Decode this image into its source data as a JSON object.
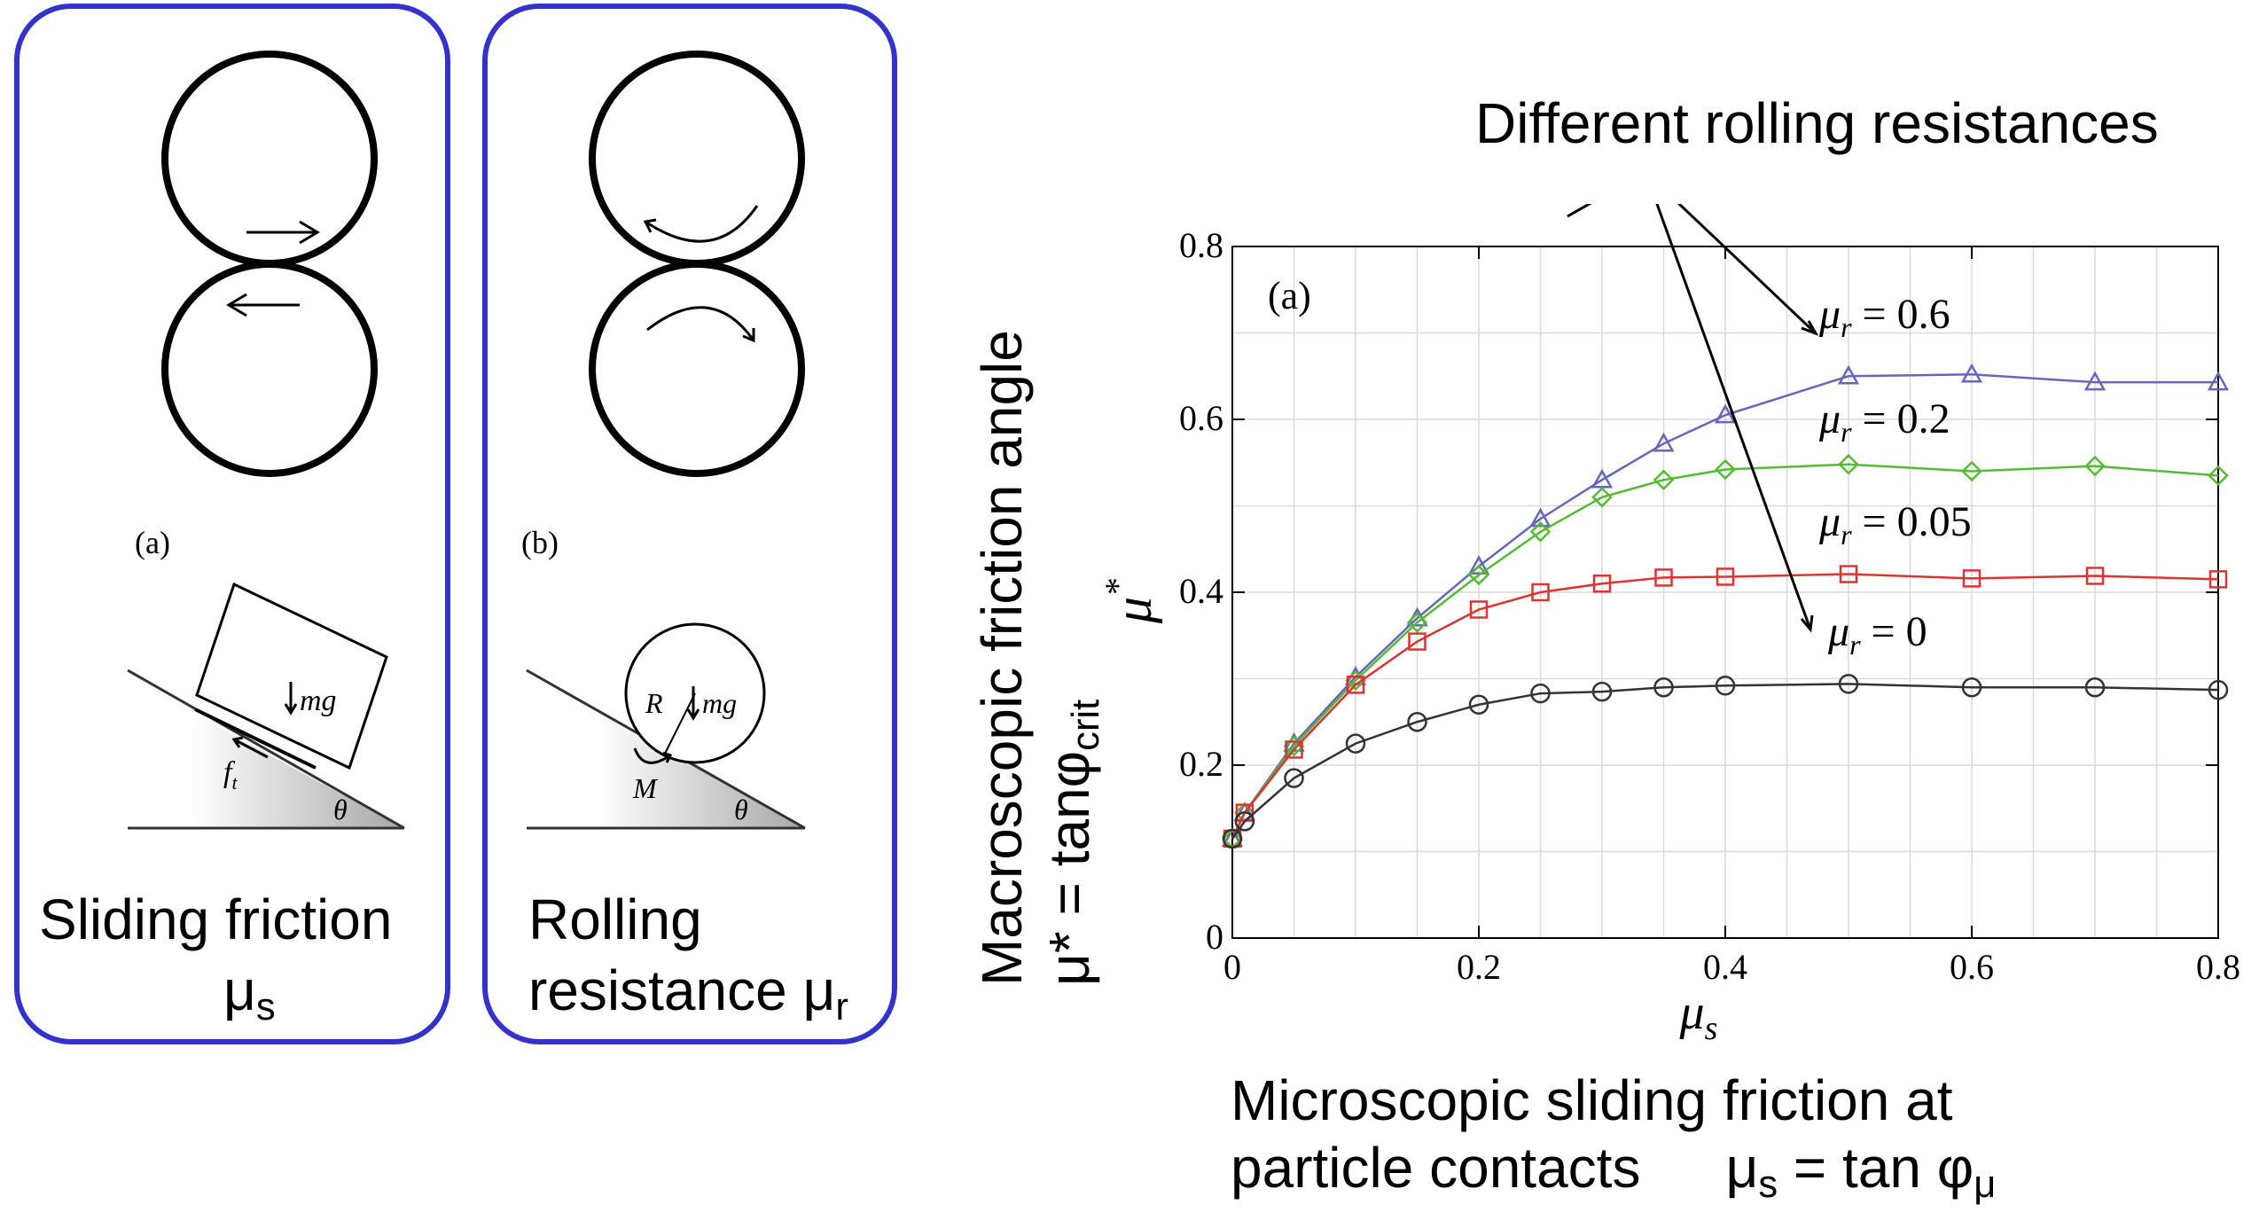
{
  "panel_a": {
    "sublabel": "(a)",
    "force_label": "mg",
    "friction_label": "f",
    "friction_sub": "t",
    "angle_label": "θ",
    "caption_line1": "Sliding friction",
    "caption_mu": "μ",
    "caption_sub": "s"
  },
  "panel_b": {
    "sublabel": "(b)",
    "radius_label": "R",
    "force_label": "mg",
    "moment_label": "M",
    "angle_label": "θ",
    "caption_line1": "Rolling",
    "caption_line2": "resistance μ",
    "caption_sub": "r"
  },
  "annotation": {
    "text": "Different rolling resistances"
  },
  "left_label": {
    "line1": "Macroscopic friction angle",
    "line2_prefix": "μ* = tanφ",
    "line2_sub": "crit"
  },
  "bottom_label": {
    "line1": "Microscopic sliding friction at",
    "line2_prefix": "particle contacts",
    "line2_mu": "μ",
    "line2_mu_sub": "s",
    "line2_eq": " = tan φ",
    "line2_phi_sub": "μ"
  },
  "chart_data": {
    "type": "line",
    "panel_label": "(a)",
    "xlabel_base": "μ",
    "xlabel_sub": "s",
    "ylabel_base": "μ",
    "ylabel_sup": "*",
    "xlim": [
      0,
      0.8
    ],
    "ylim": [
      0,
      0.8
    ],
    "xticks": [
      "0",
      "0.2",
      "0.4",
      "0.6",
      "0.8"
    ],
    "yticks": [
      "0",
      "0.2",
      "0.4",
      "0.6",
      "0.8"
    ],
    "x": [
      0,
      0.01,
      0.05,
      0.1,
      0.15,
      0.2,
      0.25,
      0.3,
      0.35,
      0.4,
      0.5,
      0.6,
      0.7,
      0.8
    ],
    "series": [
      {
        "name": "μr = 0.6",
        "label_mu": "μ",
        "label_sub": "r",
        "label_val": "= 0.6",
        "color": "#6666bb",
        "marker": "triangle",
        "values": [
          0.115,
          0.145,
          0.225,
          0.302,
          0.37,
          0.43,
          0.485,
          0.53,
          0.572,
          0.605,
          0.65,
          0.652,
          0.643,
          0.643
        ]
      },
      {
        "name": "μr = 0.2",
        "label_mu": "μ",
        "label_sub": "r",
        "label_val": "= 0.2",
        "color": "#55bb33",
        "marker": "diamond",
        "values": [
          0.115,
          0.145,
          0.222,
          0.298,
          0.365,
          0.42,
          0.47,
          0.51,
          0.53,
          0.542,
          0.548,
          0.54,
          0.546,
          0.535
        ]
      },
      {
        "name": "μr = 0.05",
        "label_mu": "μ",
        "label_sub": "r",
        "label_val": "= 0.05",
        "color": "#dd3333",
        "marker": "square",
        "values": [
          0.115,
          0.145,
          0.218,
          0.293,
          0.343,
          0.38,
          0.4,
          0.41,
          0.417,
          0.418,
          0.421,
          0.416,
          0.419,
          0.415
        ]
      },
      {
        "name": "μr = 0",
        "label_mu": "μ",
        "label_sub": "r",
        "label_val": "= 0",
        "color": "#333333",
        "marker": "circle",
        "values": [
          0.115,
          0.135,
          0.185,
          0.225,
          0.25,
          0.27,
          0.283,
          0.285,
          0.29,
          0.292,
          0.294,
          0.29,
          0.29,
          0.287
        ]
      }
    ]
  }
}
